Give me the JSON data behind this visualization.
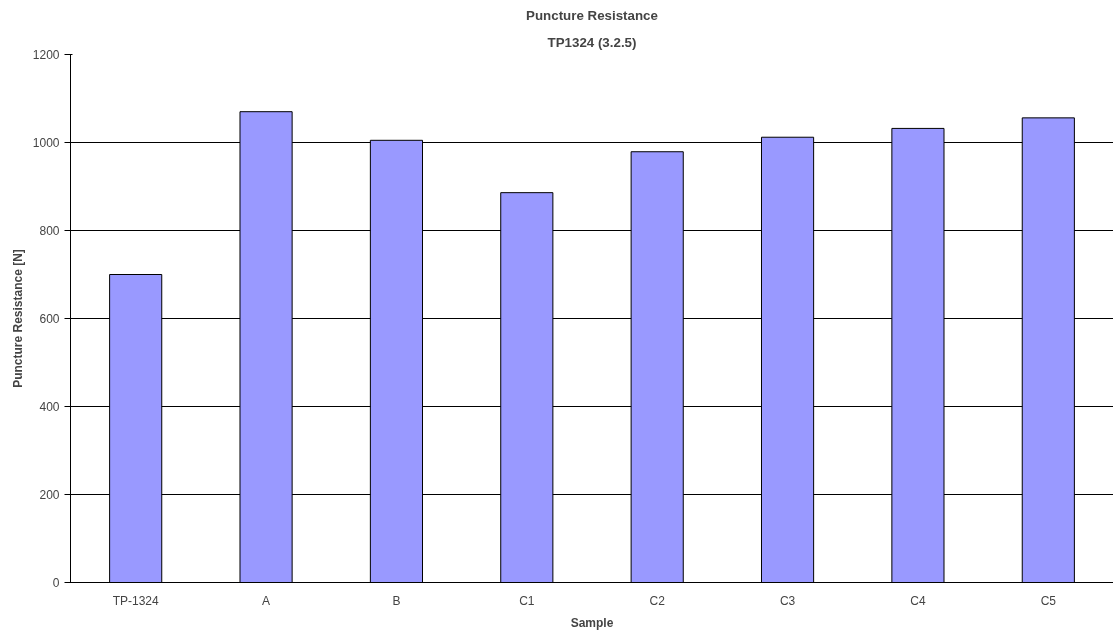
{
  "chart_data": {
    "type": "bar",
    "title": "Puncture Resistance",
    "subtitle": "TP1324 (3.2.5)",
    "xlabel": "Sample",
    "ylabel": "Puncture Resistance [N]",
    "categories": [
      "TP-1324",
      "A",
      "B",
      "C1",
      "C2",
      "C3",
      "C4",
      "C5"
    ],
    "values": [
      700,
      1070,
      1005,
      886,
      979,
      1012,
      1032,
      1056
    ],
    "color": "#9999ff",
    "ylim": [
      0,
      1200
    ],
    "yticks": [
      0,
      200,
      400,
      600,
      800,
      1000,
      1200
    ],
    "grid": "y"
  }
}
